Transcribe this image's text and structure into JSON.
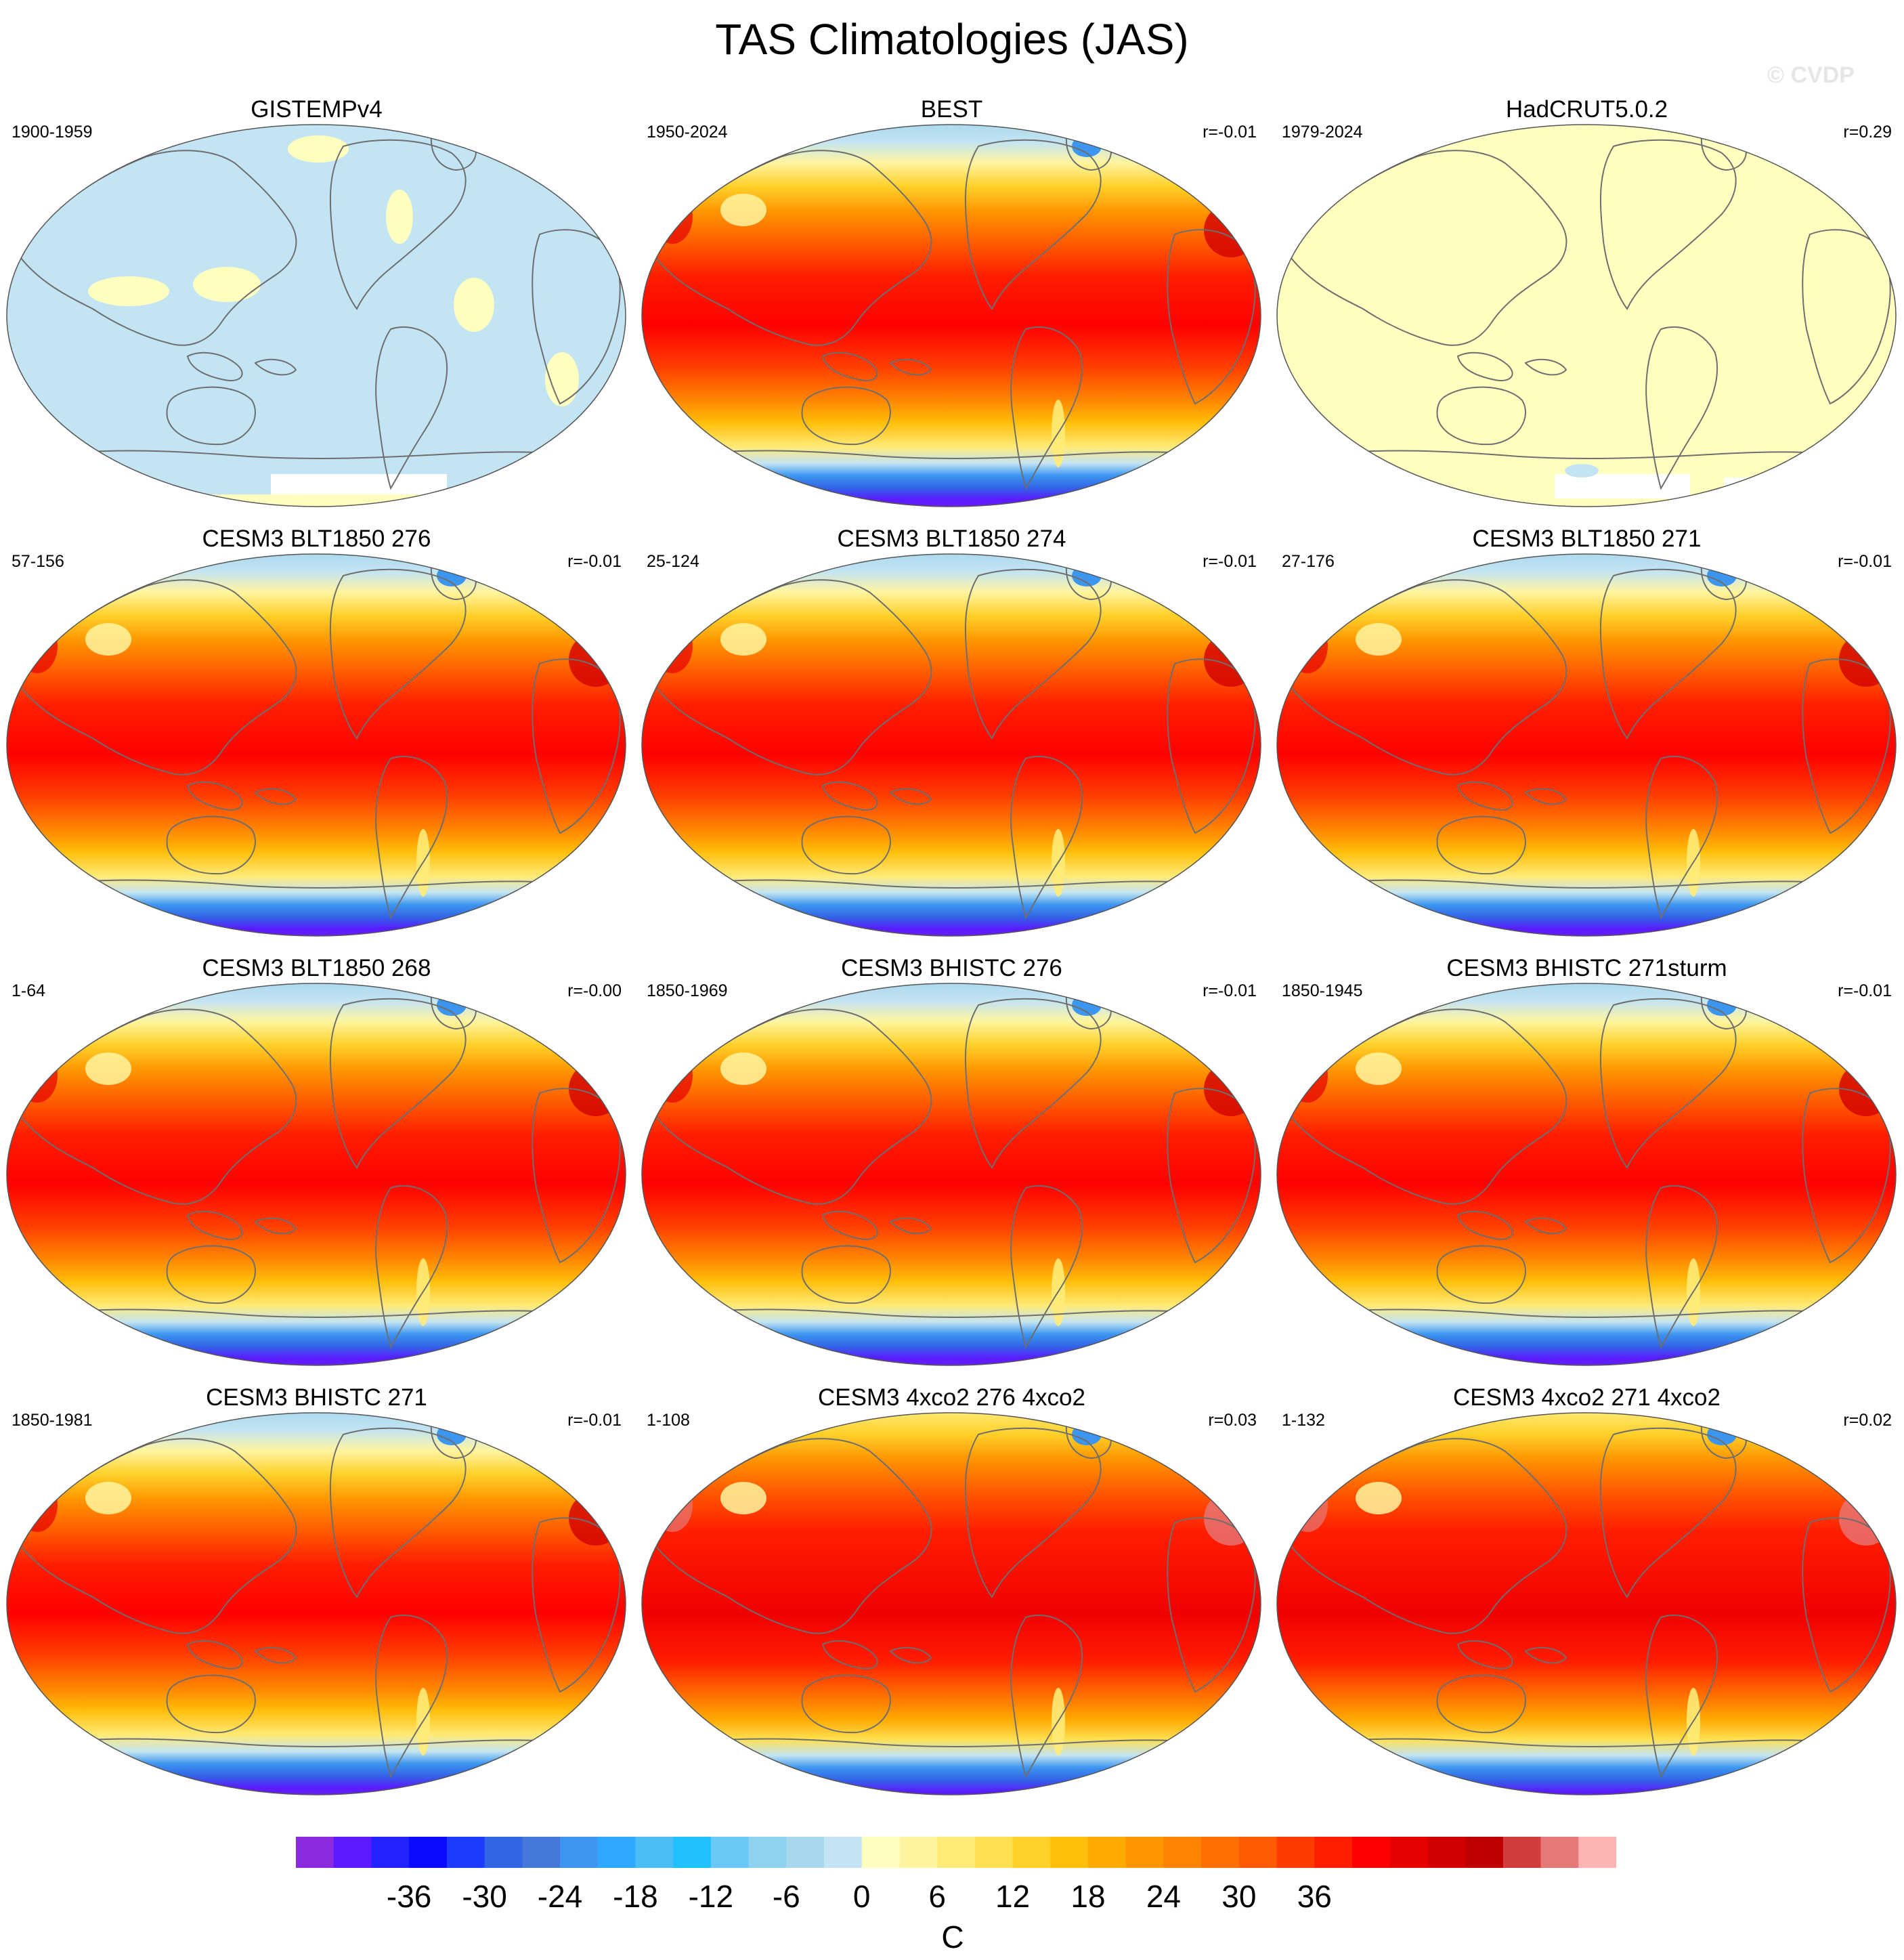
{
  "title": "TAS Climatologies (JAS)",
  "watermark": "© CVDP",
  "panels": [
    {
      "title": "GISTEMPv4",
      "period": "1900-1959",
      "r": "",
      "style": "anomaly_gistemp"
    },
    {
      "title": "BEST",
      "period": "1950-2024",
      "r": "r=-0.01",
      "style": "obs"
    },
    {
      "title": "HadCRUT5.0.2",
      "period": "1979-2024",
      "r": "r=0.29",
      "style": "anomaly_hadcrut"
    },
    {
      "title": "CESM3 BLT1850 276",
      "period": "57-156",
      "r": "r=-0.01",
      "style": "model"
    },
    {
      "title": "CESM3 BLT1850 274",
      "period": "25-124",
      "r": "r=-0.01",
      "style": "model"
    },
    {
      "title": "CESM3 BLT1850 271",
      "period": "27-176",
      "r": "r=-0.01",
      "style": "model"
    },
    {
      "title": "CESM3 BLT1850 268",
      "period": "1-64",
      "r": "r=-0.00",
      "style": "model"
    },
    {
      "title": "CESM3 BHISTC 276",
      "period": "1850-1969",
      "r": "r=-0.01",
      "style": "model"
    },
    {
      "title": "CESM3 BHISTC 271sturm",
      "period": "1850-1945",
      "r": "r=-0.01",
      "style": "model"
    },
    {
      "title": "CESM3 BHISTC 271",
      "period": "1850-1981",
      "r": "r=-0.01",
      "style": "model"
    },
    {
      "title": "CESM3 4xco2 276 4xco2",
      "period": "1-108",
      "r": "r=0.03",
      "style": "warm"
    },
    {
      "title": "CESM3 4xco2 271 4xco2",
      "period": "1-132",
      "r": "r=0.02",
      "style": "warm"
    }
  ],
  "colorbar": {
    "unit": "C",
    "ticks": [
      "-36",
      "-30",
      "-24",
      "-18",
      "-12",
      "-6",
      "0",
      "6",
      "12",
      "18",
      "24",
      "30",
      "36"
    ],
    "colors": [
      "#8a2be2",
      "#5b1aff",
      "#2323ff",
      "#0a0aff",
      "#1e3cff",
      "#3264e6",
      "#4678dc",
      "#3c96f0",
      "#2ea8ff",
      "#4cbcf5",
      "#20c0ff",
      "#69c8f5",
      "#8ed2f0",
      "#a9d8ee",
      "#c3e4f2",
      "#ffffc0",
      "#fff5a0",
      "#ffeb78",
      "#ffe050",
      "#ffd028",
      "#ffbe0a",
      "#ffa800",
      "#ff9600",
      "#ff8200",
      "#ff6e00",
      "#ff5a00",
      "#ff3c00",
      "#ff1e00",
      "#ff0000",
      "#e60000",
      "#d20000",
      "#be0000",
      "#d23c3c",
      "#e67878",
      "#ffb4b4"
    ]
  }
}
